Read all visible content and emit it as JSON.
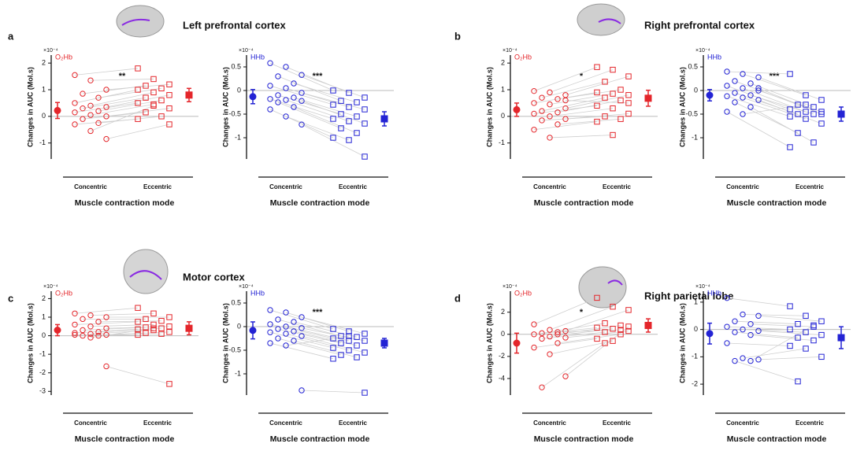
{
  "panels": [
    {
      "letter": "a",
      "title": "Left prefrontal cortex"
    },
    {
      "letter": "b",
      "title": "Right prefrontal cortex"
    },
    {
      "letter": "c",
      "title": "Motor cortex"
    },
    {
      "letter": "d",
      "title": "Right parietal lobe"
    }
  ],
  "chart_data": [
    {
      "type": "paired-scatter",
      "signal": "O₂Hb",
      "exponent": "×10⁻⁴",
      "ylabel": "Changes in AUC (Mol.s)",
      "xlabel": "Muscle contraction mode",
      "significance": "**",
      "color": "#e4262b",
      "categories": [
        "Concentric",
        "Eccentric"
      ],
      "series": [
        {
          "marker": "circle",
          "values": [
            1.55,
            1.35,
            1.0,
            0.85,
            0.7,
            0.5,
            0.4,
            0.35,
            0.3,
            0.2,
            0.15,
            0.05,
            0,
            -0.1,
            -0.25,
            -0.3,
            -0.55,
            -0.85
          ]
        },
        {
          "marker": "square",
          "values": [
            1.8,
            1.4,
            1.2,
            1.15,
            1.05,
            1.0,
            0.9,
            0.8,
            0.7,
            0.6,
            0.5,
            0.45,
            0.3,
            0.15,
            0,
            -0.1,
            0.4,
            -0.3
          ]
        }
      ],
      "mean": [
        0.22,
        0.8
      ],
      "error": [
        0.3,
        0.25
      ],
      "ylim": [
        -1.6,
        2.3
      ],
      "yticks": [
        -1,
        0,
        1,
        2
      ]
    },
    {
      "type": "paired-scatter",
      "signal": "HHb",
      "exponent": "×10⁻⁴",
      "ylabel": "Changes in AUC (Mol.s)",
      "xlabel": "Muscle contraction mode",
      "significance": "***",
      "color": "#2323d4",
      "categories": [
        "Concentric",
        "Eccentric"
      ],
      "series": [
        {
          "marker": "circle",
          "values": [
            0.58,
            0.5,
            0.33,
            0.3,
            0.15,
            0.1,
            0.05,
            -0.05,
            -0.1,
            -0.15,
            -0.18,
            -0.2,
            -0.22,
            -0.25,
            -0.35,
            -0.4,
            -0.55,
            -0.72
          ]
        },
        {
          "marker": "square",
          "values": [
            0,
            -0.05,
            -0.15,
            -0.22,
            -0.25,
            -0.3,
            -0.35,
            -0.4,
            -0.5,
            -0.55,
            -0.6,
            -0.65,
            -0.7,
            -0.8,
            -0.9,
            -1.0,
            -1.05,
            -1.4
          ]
        }
      ],
      "mean": [
        -0.13,
        -0.6
      ],
      "error": [
        0.15,
        0.15
      ],
      "ylim": [
        -1.45,
        0.75
      ],
      "yticks": [
        -1,
        -0.5,
        0,
        0.5
      ]
    },
    {
      "type": "paired-scatter",
      "signal": "O₂Hb",
      "exponent": "×10⁻⁴",
      "ylabel": "Changes in AUC (Mol.s)",
      "xlabel": "Muscle contraction mode",
      "significance": "*",
      "color": "#e4262b",
      "categories": [
        "Concentric",
        "Eccentric"
      ],
      "series": [
        {
          "marker": "circle",
          "values": [
            0.95,
            0.9,
            0.8,
            0.7,
            0.65,
            0.5,
            0.45,
            0.3,
            0.2,
            0.15,
            0.1,
            0,
            -0.1,
            -0.15,
            -0.3,
            -0.5,
            -0.8,
            0.6
          ]
        },
        {
          "marker": "square",
          "values": [
            1.85,
            1.75,
            1.5,
            1.3,
            1.0,
            0.9,
            0.85,
            0.8,
            0.7,
            0.6,
            0.4,
            0.3,
            0.1,
            0,
            -0.1,
            -0.2,
            -0.7,
            0.5
          ]
        }
      ],
      "mean": [
        0.25,
        0.68
      ],
      "error": [
        0.25,
        0.3
      ],
      "ylim": [
        -1.6,
        2.3
      ],
      "yticks": [
        -1,
        0,
        1,
        2
      ]
    },
    {
      "type": "paired-scatter",
      "signal": "HHb",
      "exponent": "×10⁻⁴",
      "ylabel": "Changes in AUC (Mol.s)",
      "xlabel": "Muscle contraction mode",
      "significance": "***",
      "color": "#2323d4",
      "categories": [
        "Concentric",
        "Eccentric"
      ],
      "series": [
        {
          "marker": "circle",
          "values": [
            0.4,
            0.35,
            0.28,
            0.2,
            0.15,
            0.1,
            0.05,
            0,
            -0.05,
            -0.1,
            -0.12,
            -0.15,
            -0.2,
            -0.25,
            -0.35,
            -0.45,
            -0.5,
            0.05
          ]
        },
        {
          "marker": "square",
          "values": [
            0.35,
            -0.1,
            -0.2,
            -0.3,
            -0.35,
            -0.4,
            -0.45,
            -0.45,
            -0.5,
            -0.5,
            -0.55,
            -0.6,
            -0.7,
            -0.9,
            -1.1,
            -1.2,
            -0.3,
            -0.5
          ]
        }
      ],
      "mean": [
        -0.1,
        -0.5
      ],
      "error": [
        0.12,
        0.15
      ],
      "ylim": [
        -1.45,
        0.75
      ],
      "yticks": [
        -1,
        -0.5,
        0,
        0.5
      ]
    },
    {
      "type": "paired-scatter",
      "signal": "O₂Hb",
      "exponent": "×10⁻⁴",
      "ylabel": "Changes in AUC (Mol.s)",
      "xlabel": "Muscle contraction mode",
      "color": "#e4262b",
      "categories": [
        "Concentric",
        "Eccentric"
      ],
      "series": [
        {
          "marker": "circle",
          "values": [
            1.2,
            1.1,
            1.0,
            0.9,
            0.75,
            0.6,
            0.5,
            0.4,
            0.3,
            0.2,
            0.15,
            0.1,
            0.05,
            0,
            0,
            0.05,
            -0.1,
            -1.65
          ]
        },
        {
          "marker": "square",
          "values": [
            1.5,
            1.2,
            1.0,
            0.9,
            0.8,
            0.75,
            0.6,
            0.5,
            0.45,
            0.4,
            0.35,
            0.3,
            0.2,
            0.15,
            0.1,
            0.05,
            0.4,
            -2.6
          ]
        }
      ],
      "mean": [
        0.3,
        0.4
      ],
      "error": [
        0.3,
        0.35
      ],
      "ylim": [
        -3.2,
        2.4
      ],
      "yticks": [
        -3,
        -2,
        -1,
        0,
        1,
        2
      ]
    },
    {
      "type": "paired-scatter",
      "signal": "HHb",
      "exponent": "×10⁻⁴",
      "ylabel": "Changes in AUC (Mol.s)",
      "xlabel": "Muscle contraction mode",
      "significance": "***",
      "color": "#2323d4",
      "categories": [
        "Concentric",
        "Eccentric"
      ],
      "series": [
        {
          "marker": "circle",
          "values": [
            0.35,
            0.3,
            0.2,
            0.15,
            0.1,
            0.05,
            0,
            -0.03,
            -0.05,
            -0.1,
            -0.12,
            -0.15,
            -0.2,
            -0.25,
            -0.3,
            -0.35,
            -0.4,
            -1.35
          ]
        },
        {
          "marker": "square",
          "values": [
            -0.05,
            -0.1,
            -0.15,
            -0.2,
            -0.22,
            -0.25,
            -0.3,
            -0.3,
            -0.35,
            -0.4,
            -0.45,
            -0.5,
            -0.55,
            -0.6,
            -0.65,
            -0.68,
            -0.2,
            -1.4
          ]
        }
      ],
      "mean": [
        -0.08,
        -0.35
      ],
      "error": [
        0.18,
        0.1
      ],
      "ylim": [
        -1.45,
        0.75
      ],
      "yticks": [
        -1,
        -0.5,
        0,
        0.5
      ]
    },
    {
      "type": "paired-scatter",
      "signal": "O₂Hb",
      "exponent": "×10⁻⁴",
      "ylabel": "Changes in AUC (Mol.s)",
      "xlabel": "Muscle contraction mode",
      "significance": "*",
      "color": "#e4262b",
      "categories": [
        "Concentric",
        "Eccentric"
      ],
      "series": [
        {
          "marker": "circle",
          "values": [
            0.9,
            0.4,
            0.3,
            0.1,
            0,
            0,
            -0.2,
            -0.3,
            -0.4,
            -0.8,
            -1.2,
            -1.8,
            -3.8,
            -4.8,
            0.2
          ]
        },
        {
          "marker": "square",
          "values": [
            3.3,
            2.5,
            2.2,
            1.0,
            0.8,
            0.6,
            0.5,
            0.3,
            0.2,
            0,
            -0.4,
            -0.6,
            0.7,
            -0.8,
            0.4
          ]
        }
      ],
      "mean": [
        -0.8,
        0.8
      ],
      "error": [
        0.9,
        0.6
      ],
      "ylim": [
        -5.5,
        3.9
      ],
      "yticks": [
        -4,
        -2,
        0,
        2
      ]
    },
    {
      "type": "paired-scatter",
      "signal": "HHb",
      "exponent": "×10⁻⁴",
      "ylabel": "Changes in AUC (Mol.s)",
      "xlabel": "Muscle contraction mode",
      "color": "#2323d4",
      "categories": [
        "Concentric",
        "Eccentric"
      ],
      "series": [
        {
          "marker": "circle",
          "values": [
            1.15,
            0.55,
            0.5,
            0.3,
            0.2,
            0.1,
            0,
            -0.05,
            -0.1,
            -0.2,
            -0.5,
            -1.05,
            -1.1,
            -1.15,
            -1.15
          ]
        },
        {
          "marker": "square",
          "values": [
            0.85,
            0.5,
            0.3,
            0.2,
            0.1,
            0,
            -0.1,
            -0.2,
            -0.3,
            -0.4,
            -0.6,
            -0.7,
            -1.0,
            -1.9,
            0.15
          ]
        }
      ],
      "mean": [
        -0.15,
        -0.3
      ],
      "error": [
        0.38,
        0.4
      ],
      "ylim": [
        -2.4,
        1.4
      ],
      "yticks": [
        -2,
        -1,
        0,
        1
      ]
    }
  ]
}
